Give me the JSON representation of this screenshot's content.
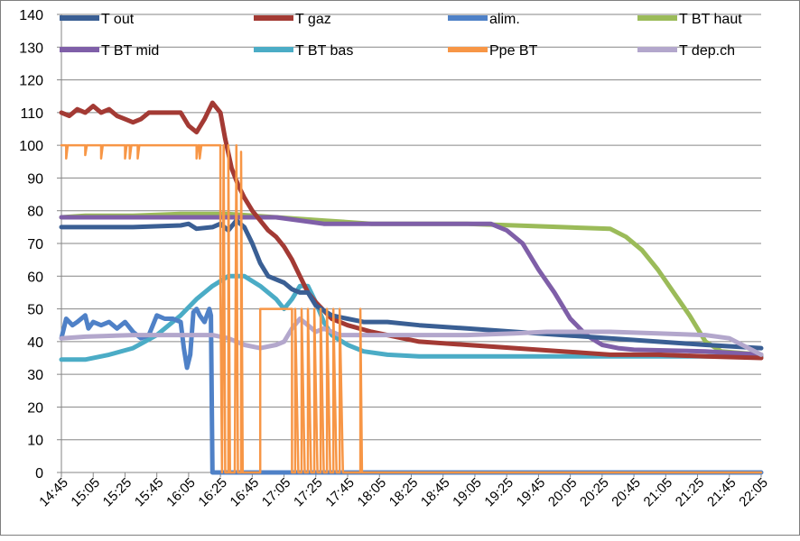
{
  "chart_data": {
    "type": "line",
    "title": "",
    "xlabel": "",
    "ylabel": "",
    "ylim": [
      0,
      140
    ],
    "ytick_step": 10,
    "x_unit": "time",
    "x_range": [
      "14:45",
      "22:05"
    ],
    "x_ticks": [
      "14:45",
      "15:05",
      "15:25",
      "15:45",
      "16:05",
      "16:25",
      "16:45",
      "17:05",
      "17:25",
      "17:45",
      "18:05",
      "18:25",
      "18:45",
      "19:05",
      "19:25",
      "19:45",
      "20:05",
      "20:25",
      "20:45",
      "21:05",
      "21:25",
      "21:45",
      "22:05"
    ],
    "grid": "horizontal",
    "legend": "top",
    "series": [
      {
        "name": "T out",
        "color": "#3a5f94",
        "points": [
          [
            "14:45",
            75
          ],
          [
            "15:00",
            75
          ],
          [
            "15:30",
            75
          ],
          [
            "16:00",
            75.5
          ],
          [
            "16:05",
            76
          ],
          [
            "16:10",
            74.5
          ],
          [
            "16:20",
            75
          ],
          [
            "16:25",
            76
          ],
          [
            "16:30",
            74
          ],
          [
            "16:35",
            77
          ],
          [
            "16:40",
            75
          ],
          [
            "16:45",
            70
          ],
          [
            "16:50",
            64
          ],
          [
            "16:55",
            60
          ],
          [
            "17:05",
            58
          ],
          [
            "17:10",
            56
          ],
          [
            "17:15",
            55
          ],
          [
            "17:20",
            55
          ],
          [
            "17:25",
            51
          ],
          [
            "17:35",
            48
          ],
          [
            "17:45",
            47
          ],
          [
            "17:55",
            46
          ],
          [
            "18:10",
            46
          ],
          [
            "18:30",
            45
          ],
          [
            "19:00",
            44
          ],
          [
            "19:30",
            43
          ],
          [
            "20:00",
            42
          ],
          [
            "20:30",
            41
          ],
          [
            "21:00",
            40
          ],
          [
            "21:30",
            39
          ],
          [
            "22:05",
            38
          ]
        ]
      },
      {
        "name": "T gaz",
        "color": "#a33a34",
        "points": [
          [
            "14:45",
            110
          ],
          [
            "14:50",
            109
          ],
          [
            "14:55",
            111
          ],
          [
            "15:00",
            110
          ],
          [
            "15:05",
            112
          ],
          [
            "15:10",
            110
          ],
          [
            "15:15",
            111
          ],
          [
            "15:20",
            109
          ],
          [
            "15:25",
            108
          ],
          [
            "15:30",
            107
          ],
          [
            "15:35",
            108
          ],
          [
            "15:40",
            110
          ],
          [
            "15:50",
            110
          ],
          [
            "16:00",
            110
          ],
          [
            "16:05",
            106
          ],
          [
            "16:10",
            104
          ],
          [
            "16:15",
            108
          ],
          [
            "16:20",
            113
          ],
          [
            "16:25",
            110
          ],
          [
            "16:28",
            102
          ],
          [
            "16:32",
            93
          ],
          [
            "16:36",
            88
          ],
          [
            "16:40",
            84
          ],
          [
            "16:45",
            80
          ],
          [
            "16:50",
            77
          ],
          [
            "16:55",
            74
          ],
          [
            "17:00",
            72
          ],
          [
            "17:05",
            69
          ],
          [
            "17:10",
            65
          ],
          [
            "17:15",
            60
          ],
          [
            "17:20",
            55
          ],
          [
            "17:25",
            52
          ],
          [
            "17:35",
            47
          ],
          [
            "17:45",
            45
          ],
          [
            "18:00",
            43
          ],
          [
            "18:30",
            40
          ],
          [
            "19:00",
            39
          ],
          [
            "19:30",
            38
          ],
          [
            "20:00",
            37
          ],
          [
            "20:30",
            36
          ],
          [
            "21:00",
            36
          ],
          [
            "21:30",
            35.5
          ],
          [
            "22:05",
            35
          ]
        ]
      },
      {
        "name": "alim.",
        "color": "#4f81c7",
        "points": [
          [
            "14:45",
            41
          ],
          [
            "14:48",
            47
          ],
          [
            "14:52",
            45
          ],
          [
            "14:55",
            46
          ],
          [
            "15:00",
            48
          ],
          [
            "15:02",
            44
          ],
          [
            "15:05",
            46
          ],
          [
            "15:10",
            45
          ],
          [
            "15:15",
            46
          ],
          [
            "15:20",
            44
          ],
          [
            "15:25",
            46
          ],
          [
            "15:30",
            43
          ],
          [
            "15:35",
            41
          ],
          [
            "15:40",
            42
          ],
          [
            "15:45",
            48
          ],
          [
            "15:50",
            47
          ],
          [
            "15:55",
            47
          ],
          [
            "16:00",
            46
          ],
          [
            "16:02",
            38
          ],
          [
            "16:04",
            32
          ],
          [
            "16:06",
            36
          ],
          [
            "16:08",
            49
          ],
          [
            "16:10",
            50
          ],
          [
            "16:12",
            48
          ],
          [
            "16:15",
            46
          ],
          [
            "16:18",
            50
          ],
          [
            "16:19",
            48
          ],
          [
            "16:20",
            0
          ],
          [
            "22:05",
            0
          ]
        ]
      },
      {
        "name": "T BT haut",
        "color": "#9bbb59",
        "points": [
          [
            "14:45",
            78
          ],
          [
            "15:00",
            78.5
          ],
          [
            "15:30",
            78.5
          ],
          [
            "16:00",
            79
          ],
          [
            "16:30",
            79
          ],
          [
            "17:00",
            78
          ],
          [
            "17:30",
            77
          ],
          [
            "18:00",
            76
          ],
          [
            "19:00",
            76
          ],
          [
            "19:30",
            75.5
          ],
          [
            "20:00",
            75
          ],
          [
            "20:30",
            74.5
          ],
          [
            "20:40",
            72
          ],
          [
            "20:50",
            68
          ],
          [
            "21:00",
            62
          ],
          [
            "21:10",
            55
          ],
          [
            "21:20",
            48
          ],
          [
            "21:30",
            40
          ],
          [
            "21:40",
            37
          ],
          [
            "22:05",
            36
          ]
        ]
      },
      {
        "name": "T BT mid",
        "color": "#7f5fa8",
        "points": [
          [
            "14:45",
            78
          ],
          [
            "15:00",
            78
          ],
          [
            "15:30",
            78
          ],
          [
            "16:00",
            78
          ],
          [
            "16:30",
            78
          ],
          [
            "17:00",
            78
          ],
          [
            "17:30",
            76
          ],
          [
            "18:00",
            76
          ],
          [
            "18:30",
            76
          ],
          [
            "19:00",
            76
          ],
          [
            "19:15",
            76
          ],
          [
            "19:25",
            74
          ],
          [
            "19:35",
            70
          ],
          [
            "19:45",
            62
          ],
          [
            "19:55",
            55
          ],
          [
            "20:05",
            47
          ],
          [
            "20:15",
            42
          ],
          [
            "20:25",
            39
          ],
          [
            "20:35",
            38
          ],
          [
            "20:45",
            37.5
          ],
          [
            "21:30",
            37
          ],
          [
            "22:05",
            36
          ]
        ]
      },
      {
        "name": "T BT bas",
        "color": "#4bacc6",
        "points": [
          [
            "14:45",
            34.5
          ],
          [
            "15:00",
            34.5
          ],
          [
            "15:15",
            36
          ],
          [
            "15:30",
            38
          ],
          [
            "15:45",
            42
          ],
          [
            "16:00",
            48
          ],
          [
            "16:10",
            53
          ],
          [
            "16:20",
            57
          ],
          [
            "16:30",
            60
          ],
          [
            "16:40",
            60
          ],
          [
            "16:50",
            57
          ],
          [
            "17:00",
            53
          ],
          [
            "17:05",
            50
          ],
          [
            "17:10",
            53
          ],
          [
            "17:15",
            57
          ],
          [
            "17:20",
            57
          ],
          [
            "17:25",
            52
          ],
          [
            "17:30",
            46
          ],
          [
            "17:35",
            42
          ],
          [
            "17:45",
            39
          ],
          [
            "17:55",
            37
          ],
          [
            "18:10",
            36
          ],
          [
            "18:30",
            35.5
          ],
          [
            "19:00",
            35.5
          ],
          [
            "20:00",
            35.5
          ],
          [
            "21:00",
            35.5
          ],
          [
            "22:05",
            35.5
          ]
        ]
      },
      {
        "name": "Ppe BT",
        "color": "#f79646",
        "points": [
          [
            "14:45",
            100
          ],
          [
            "14:48",
            100
          ],
          [
            "14:48",
            96
          ],
          [
            "14:49",
            100
          ],
          [
            "15:00",
            100
          ],
          [
            "15:00",
            97
          ],
          [
            "15:01",
            100
          ],
          [
            "15:10",
            100
          ],
          [
            "15:10",
            96
          ],
          [
            "15:11",
            100
          ],
          [
            "15:25",
            100
          ],
          [
            "15:25",
            96
          ],
          [
            "15:26",
            100
          ],
          [
            "15:28",
            100
          ],
          [
            "15:28",
            96
          ],
          [
            "15:29",
            100
          ],
          [
            "15:33",
            100
          ],
          [
            "15:33",
            96
          ],
          [
            "15:34",
            100
          ],
          [
            "16:10",
            100
          ],
          [
            "16:10",
            96
          ],
          [
            "16:11",
            100
          ],
          [
            "16:12",
            100
          ],
          [
            "16:12",
            96
          ],
          [
            "16:13",
            100
          ],
          [
            "16:25",
            100
          ],
          [
            "16:25",
            55
          ],
          [
            "16:26",
            0
          ],
          [
            "16:27",
            100
          ],
          [
            "16:28",
            0
          ],
          [
            "16:30",
            0
          ],
          [
            "16:30",
            100
          ],
          [
            "16:31",
            0
          ],
          [
            "16:34",
            0
          ],
          [
            "16:35",
            100
          ],
          [
            "16:36",
            0
          ],
          [
            "16:38",
            0
          ],
          [
            "16:38",
            98
          ],
          [
            "16:39",
            0
          ],
          [
            "16:45",
            0
          ],
          [
            "16:50",
            0
          ],
          [
            "16:50",
            50
          ],
          [
            "17:10",
            50
          ],
          [
            "17:10",
            0
          ],
          [
            "17:12",
            0
          ],
          [
            "17:12",
            50
          ],
          [
            "17:14",
            0
          ],
          [
            "17:16",
            0
          ],
          [
            "17:16",
            50
          ],
          [
            "17:18",
            0
          ],
          [
            "17:20",
            0
          ],
          [
            "17:20",
            50
          ],
          [
            "17:22",
            0
          ],
          [
            "17:24",
            0
          ],
          [
            "17:24",
            50
          ],
          [
            "17:26",
            0
          ],
          [
            "17:28",
            0
          ],
          [
            "17:28",
            50
          ],
          [
            "17:30",
            0
          ],
          [
            "17:32",
            0
          ],
          [
            "17:32",
            50
          ],
          [
            "17:34",
            0
          ],
          [
            "17:36",
            0
          ],
          [
            "17:36",
            50
          ],
          [
            "17:38",
            0
          ],
          [
            "17:40",
            0
          ],
          [
            "17:40",
            50
          ],
          [
            "17:42",
            0
          ],
          [
            "17:53",
            0
          ],
          [
            "17:53",
            50
          ],
          [
            "17:54",
            0
          ],
          [
            "22:05",
            0
          ]
        ]
      },
      {
        "name": "T dep.ch",
        "color": "#b3a7cc",
        "points": [
          [
            "14:45",
            41
          ],
          [
            "15:00",
            41.5
          ],
          [
            "15:30",
            42
          ],
          [
            "16:00",
            42
          ],
          [
            "16:20",
            42
          ],
          [
            "16:30",
            41
          ],
          [
            "16:40",
            39
          ],
          [
            "16:50",
            38
          ],
          [
            "17:00",
            39
          ],
          [
            "17:05",
            40
          ],
          [
            "17:10",
            44
          ],
          [
            "17:15",
            47
          ],
          [
            "17:20",
            45
          ],
          [
            "17:25",
            43
          ],
          [
            "17:30",
            44
          ],
          [
            "17:40",
            42
          ],
          [
            "18:00",
            42
          ],
          [
            "18:30",
            42
          ],
          [
            "19:00",
            42
          ],
          [
            "19:30",
            42.5
          ],
          [
            "19:50",
            43
          ],
          [
            "20:00",
            43
          ],
          [
            "20:30",
            43
          ],
          [
            "21:00",
            42.5
          ],
          [
            "21:30",
            42
          ],
          [
            "21:45",
            41
          ],
          [
            "22:05",
            36
          ]
        ]
      }
    ]
  }
}
